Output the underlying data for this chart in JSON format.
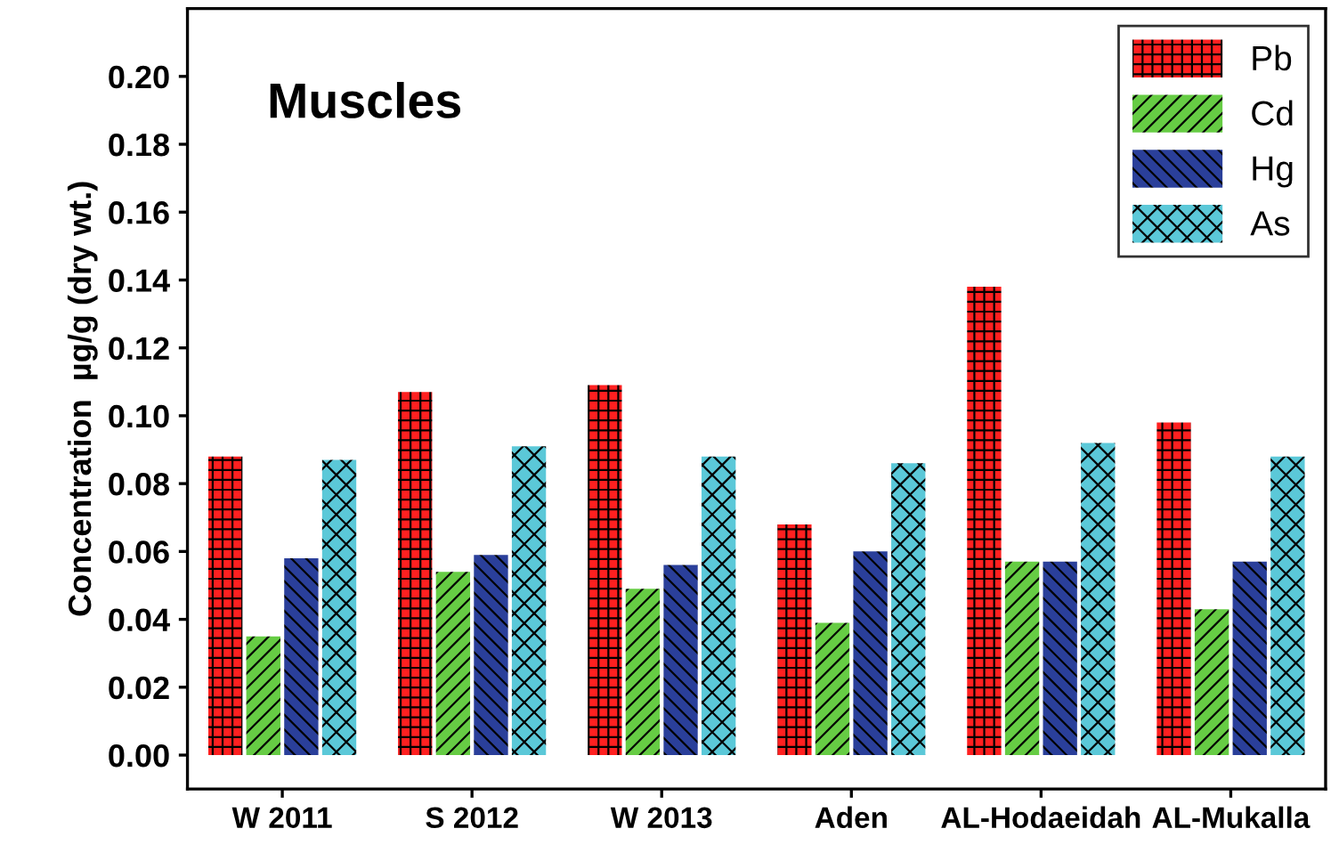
{
  "chart_data": {
    "type": "bar",
    "title": "Muscles",
    "ylabel": "Concentration  µg/g (dry wt.)",
    "categories": [
      "W 2011",
      "S 2012",
      "W 2013",
      "Aden",
      "AL-Hodaeidah",
      "AL-Mukalla"
    ],
    "series": [
      {
        "name": "Pb",
        "color": "#ff2020",
        "values": [
          0.088,
          0.107,
          0.109,
          0.068,
          0.138,
          0.098
        ]
      },
      {
        "name": "Cd",
        "color": "#66cc44",
        "values": [
          0.035,
          0.054,
          0.049,
          0.039,
          0.057,
          0.043
        ]
      },
      {
        "name": "Hg",
        "color": "#2a3f9a",
        "values": [
          0.058,
          0.059,
          0.056,
          0.06,
          0.057,
          0.057
        ]
      },
      {
        "name": "As",
        "color": "#5bc8d8",
        "values": [
          0.087,
          0.091,
          0.088,
          0.086,
          0.092,
          0.088
        ]
      }
    ],
    "ylim": [
      -0.01,
      0.22
    ],
    "yticks": [
      {
        "value": 0,
        "label": "0.00"
      },
      {
        "value": 0.02,
        "label": "0.02"
      },
      {
        "value": 0.04,
        "label": "0.04"
      },
      {
        "value": 0.06,
        "label": "0.06"
      },
      {
        "value": 0.08,
        "label": "0.08"
      },
      {
        "value": 0.1,
        "label": "0.10"
      },
      {
        "value": 0.12,
        "label": "0.12"
      },
      {
        "value": 0.14,
        "label": "0.14"
      },
      {
        "value": 0.16,
        "label": "0.16"
      },
      {
        "value": 0.18,
        "label": "0.18"
      },
      {
        "value": 0.2,
        "label": "0.20"
      }
    ],
    "legend": "top right",
    "grid": false
  }
}
